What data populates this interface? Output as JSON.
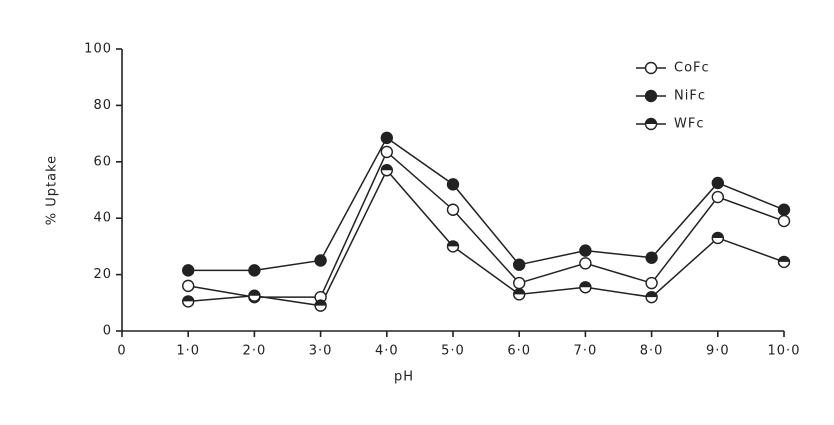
{
  "chart_data": {
    "type": "line",
    "x_label": "pH",
    "y_label": "% Uptake",
    "x": [
      1,
      2,
      3,
      4,
      5,
      6,
      7,
      8,
      9,
      10
    ],
    "series": [
      {
        "name": "CoFc",
        "color": "#222222",
        "marker": "open",
        "values": [
          16,
          12,
          12,
          63.5,
          43,
          17,
          24,
          17,
          47.5,
          39
        ]
      },
      {
        "name": "NiFc",
        "color": "#222222",
        "marker": "filled",
        "values": [
          21.5,
          21.5,
          25,
          68.5,
          52,
          23.5,
          28.5,
          26,
          52.5,
          43
        ]
      },
      {
        "name": "WFc",
        "color": "#222222",
        "marker": "half",
        "values": [
          10.5,
          12.5,
          9,
          57,
          30,
          13,
          15.5,
          12,
          33,
          24.5
        ]
      }
    ],
    "xlim": [
      0,
      10
    ],
    "xticks": [
      0,
      {
        "value": 1,
        "label": "1·0"
      },
      {
        "value": 2,
        "label": "2·0"
      },
      {
        "value": 3,
        "label": "3·0"
      },
      {
        "value": 4,
        "label": "4·0"
      },
      {
        "value": 5,
        "label": "5·0"
      },
      {
        "value": 6,
        "label": "6·0"
      },
      {
        "value": 7,
        "label": "7·0"
      },
      {
        "value": 8,
        "label": "8·0"
      },
      {
        "value": 9,
        "label": "9·0"
      },
      {
        "value": 10,
        "label": "10·0"
      }
    ],
    "ylim": [
      0,
      100
    ],
    "yticks": [
      0,
      20,
      40,
      60,
      80,
      100
    ],
    "grid": false,
    "legend": "upper right"
  }
}
